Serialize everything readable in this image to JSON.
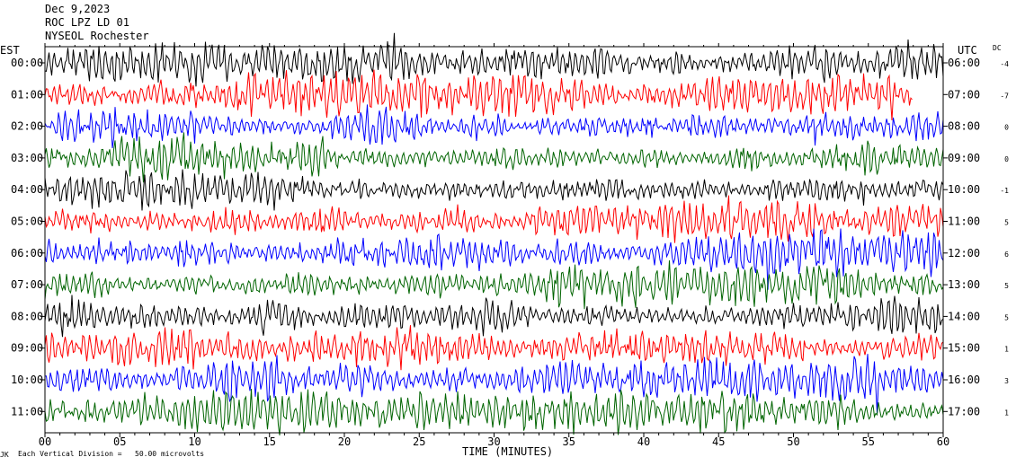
{
  "header": {
    "date": "Dec 9,2023",
    "station": "ROC LPZ LD 01",
    "network": "NYSEOL Rochester"
  },
  "left_tz": "EST",
  "right_tz": "UTC",
  "dc_header": "DC",
  "footer": {
    "xlabel": "TIME (MINUTES)",
    "scale_note": "Each Vertical Division =   50.00 microvolts",
    "corner_mark": "JK"
  },
  "chart_data": {
    "type": "line",
    "title": "",
    "xlabel": "TIME (MINUTES)",
    "xlim": [
      0,
      60
    ],
    "x_ticks": [
      "00",
      "05",
      "10",
      "15",
      "20",
      "25",
      "30",
      "35",
      "40",
      "45",
      "50",
      "55",
      "60"
    ],
    "trace_colors": [
      "#000000",
      "#ff0000",
      "#0000ff",
      "#006400"
    ],
    "rows": [
      {
        "est": "00:00",
        "utc": "06:00",
        "dc": "-4",
        "end_minute": 60
      },
      {
        "est": "01:00",
        "utc": "07:00",
        "dc": "-7",
        "end_minute": 58
      },
      {
        "est": "02:00",
        "utc": "08:00",
        "dc": "0",
        "end_minute": 60
      },
      {
        "est": "03:00",
        "utc": "09:00",
        "dc": "0",
        "end_minute": 60
      },
      {
        "est": "04:00",
        "utc": "10:00",
        "dc": "-1",
        "end_minute": 60
      },
      {
        "est": "05:00",
        "utc": "11:00",
        "dc": "5",
        "end_minute": 60
      },
      {
        "est": "06:00",
        "utc": "12:00",
        "dc": "6",
        "end_minute": 60
      },
      {
        "est": "07:00",
        "utc": "13:00",
        "dc": "5",
        "end_minute": 60
      },
      {
        "est": "08:00",
        "utc": "14:00",
        "dc": "5",
        "end_minute": 60
      },
      {
        "est": "09:00",
        "utc": "15:00",
        "dc": "1",
        "end_minute": 60
      },
      {
        "est": "10:00",
        "utc": "16:00",
        "dc": "3",
        "end_minute": 60
      },
      {
        "est": "11:00",
        "utc": "17:00",
        "dc": "1",
        "end_minute": 60
      }
    ],
    "grid": true
  }
}
